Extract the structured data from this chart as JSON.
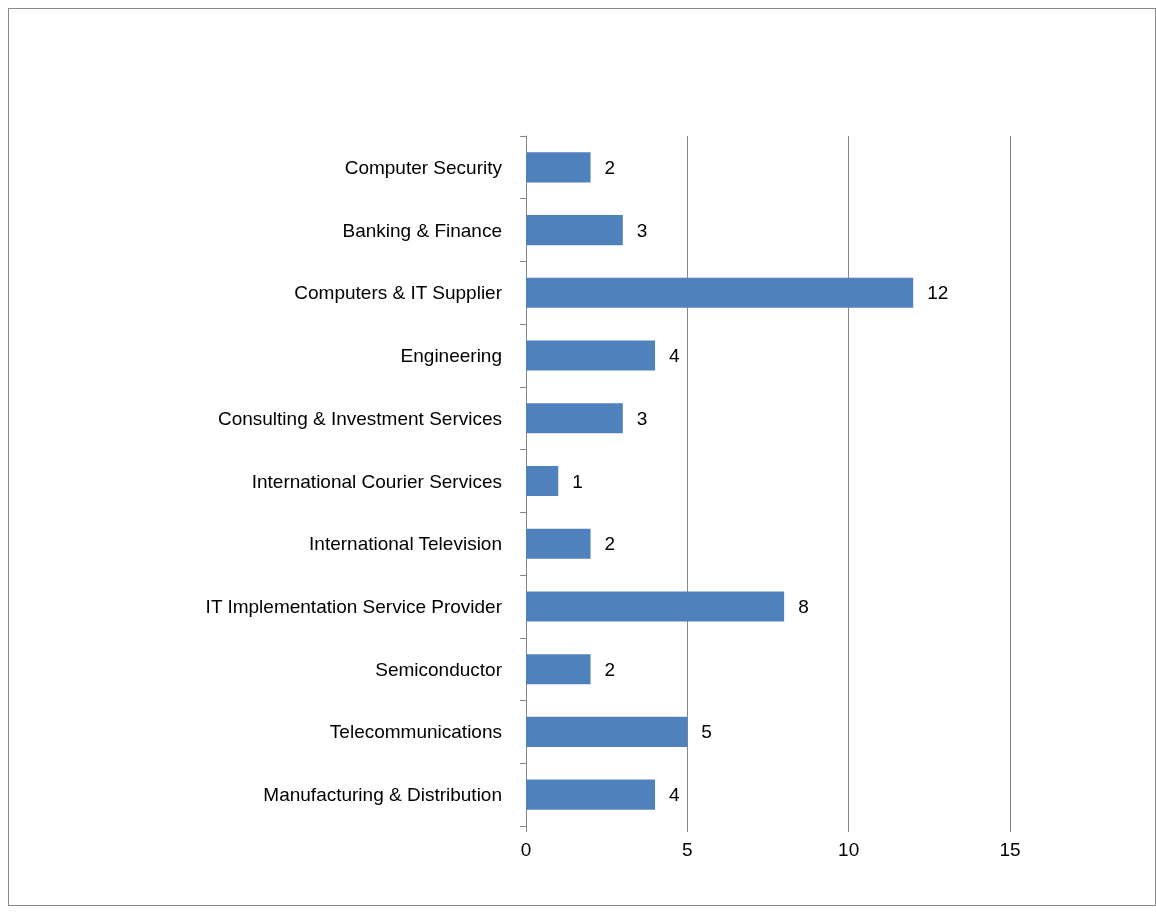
{
  "chart_data": {
    "type": "bar",
    "orientation": "horizontal",
    "categories": [
      "Computer Security",
      "Banking & Finance",
      "Computers & IT Supplier",
      "Engineering",
      "Consulting & Investment Services",
      "International Courier Services",
      "International Television",
      "IT Implementation Service Provider",
      "Semiconductor",
      "Telecommunications",
      "Manufacturing & Distribution"
    ],
    "values": [
      2,
      3,
      12,
      4,
      3,
      1,
      2,
      8,
      2,
      5,
      4
    ],
    "color": "#4f81bd",
    "xlim": [
      0,
      15
    ],
    "xticks": [
      0,
      5,
      10,
      15
    ],
    "grid": "x",
    "data_labels": true
  }
}
